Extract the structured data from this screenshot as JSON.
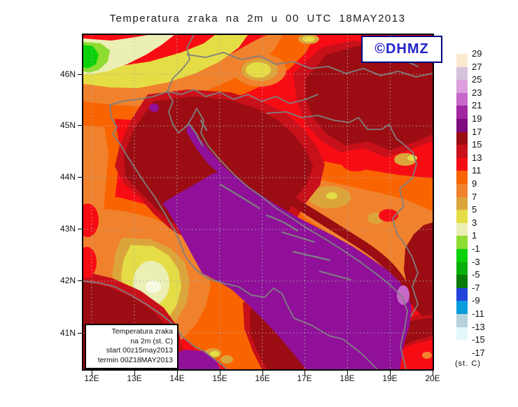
{
  "title": "Temperatura zraka na 2m u 00 UTC 18MAY2013",
  "badge": {
    "text": "©DHMZ",
    "text_color": "#2222CC",
    "border_color": "#000080"
  },
  "info_box": {
    "lines": [
      "Temperatura zraka",
      "na 2m (st. C)",
      "start 00z15may2013",
      "termin 00Z18MAY2013"
    ]
  },
  "axes": {
    "lon_labels": [
      "12E",
      "13E",
      "14E",
      "15E",
      "16E",
      "17E",
      "18E",
      "19E",
      "20E"
    ],
    "lat_labels": [
      "46N",
      "45N",
      "44N",
      "43N",
      "42N",
      "41N"
    ]
  },
  "legend": {
    "unit_label": "(st. C)",
    "tick_labels": [
      "29",
      "27",
      "25",
      "23",
      "21",
      "19",
      "17",
      "15",
      "13",
      "11",
      "9",
      "7",
      "5",
      "3",
      "1",
      "-1",
      "-3",
      "-5",
      "-7",
      "-9",
      "-11",
      "-13",
      "-15",
      "-17"
    ],
    "colors": [
      "#FBE9D0",
      "#D6C3DC",
      "#DDA0DD",
      "#C767C9",
      "#A226A2",
      "#7D0C7D",
      "#9B0D12",
      "#C8101A",
      "#F80C14",
      "#FA6400",
      "#F0822D",
      "#DCA53C",
      "#E5DD45",
      "#ECEFB4",
      "#8EDC32",
      "#0AD20A",
      "#09AF09",
      "#087A08",
      "#2242DC",
      "#089CDC",
      "#B5D2DC",
      "#E2F7FA",
      "#FFFFFF"
    ]
  },
  "map": {
    "sea_warm_color": "#90109A",
    "border_color": "#7F7F7F",
    "grid_color": "#ABABAB",
    "region_notes": "air temperature contour fill over Croatia / Adriatic / Italy / Bosnia"
  }
}
